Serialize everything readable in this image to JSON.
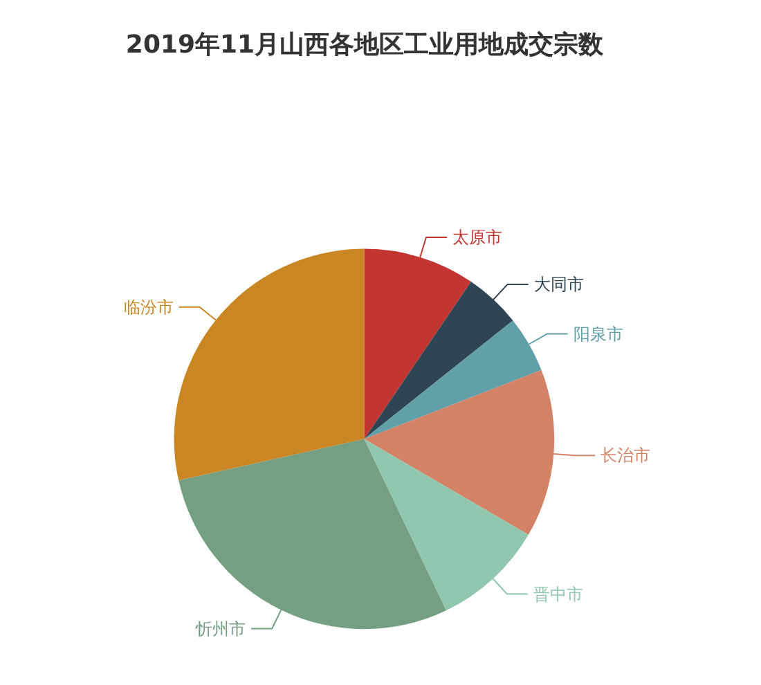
{
  "chart_data": {
    "type": "pie",
    "title": "2019年11月山西各地区工业用地成交宗数",
    "categories": [
      "太原市",
      "大同市",
      "阳泉市",
      "长治市",
      "晋中市",
      "忻州市",
      "临汾市"
    ],
    "values": [
      9.5,
      4.8,
      4.8,
      14.3,
      9.5,
      28.6,
      28.5
    ],
    "colors": [
      "#c23531",
      "#2f4554",
      "#61a0a8",
      "#d48265",
      "#91c7ae",
      "#749f83",
      "#ca8622"
    ]
  }
}
